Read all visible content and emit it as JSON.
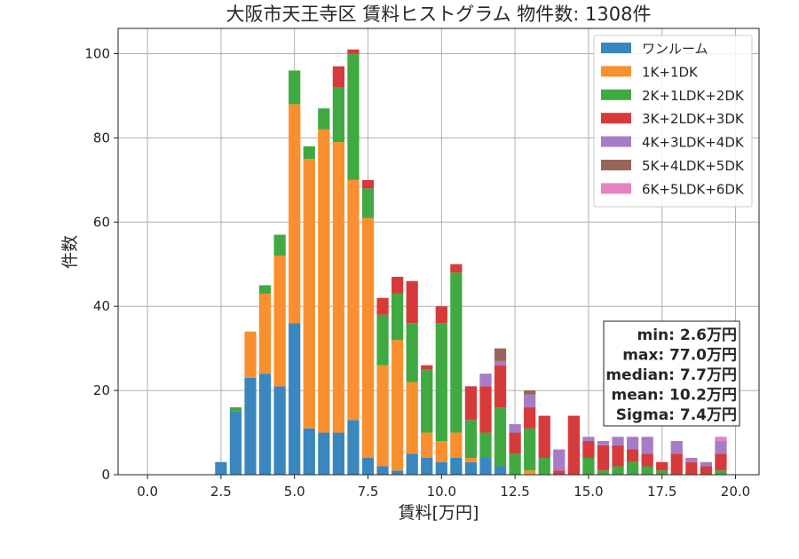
{
  "chart_data": {
    "type": "bar",
    "stacked": true,
    "title": "大阪市天王寺区 賃料ヒストグラム 物件数: 1308件",
    "xlabel": "賃料[万円]",
    "ylabel": "件数",
    "xlim": [
      -1.0,
      20.8
    ],
    "ylim": [
      0,
      106
    ],
    "xticks": [
      0.0,
      2.5,
      5.0,
      7.5,
      10.0,
      12.5,
      15.0,
      17.5,
      20.0
    ],
    "xtick_labels": [
      "0.0",
      "2.5",
      "5.0",
      "7.5",
      "10.0",
      "12.5",
      "15.0",
      "17.5",
      "20.0"
    ],
    "yticks": [
      0,
      20,
      40,
      60,
      80,
      100
    ],
    "ytick_labels": [
      "0",
      "20",
      "40",
      "60",
      "80",
      "100"
    ],
    "grid": true,
    "legend_position": "top-right",
    "bin_width": 0.5,
    "x": [
      2.5,
      3.0,
      3.5,
      4.0,
      4.5,
      5.0,
      5.5,
      6.0,
      6.5,
      7.0,
      7.5,
      8.0,
      8.5,
      9.0,
      9.5,
      10.0,
      10.5,
      11.0,
      11.5,
      12.0,
      12.5,
      13.0,
      13.5,
      14.0,
      14.5,
      15.0,
      15.5,
      16.0,
      16.5,
      17.0,
      17.5,
      18.0,
      18.5,
      19.0,
      19.5
    ],
    "series": [
      {
        "name": "ワンルーム",
        "color": "#3a87bf",
        "values": [
          3,
          15,
          23,
          24,
          21,
          36,
          11,
          10,
          10,
          13,
          4,
          2,
          1,
          5,
          4,
          3,
          4,
          3,
          4,
          2,
          0,
          0,
          0,
          0,
          0,
          0,
          0,
          0,
          0,
          0,
          0,
          0,
          0,
          0,
          0
        ]
      },
      {
        "name": "1K+1DK",
        "color": "#f98f2e",
        "values": [
          0,
          0,
          11,
          19,
          31,
          52,
          64,
          72,
          69,
          57,
          57,
          24,
          31,
          17,
          6,
          5,
          6,
          1,
          0,
          0,
          0,
          1,
          0,
          0,
          0,
          0,
          0,
          0,
          0,
          0,
          0,
          0,
          0,
          0,
          0
        ]
      },
      {
        "name": "2K+1LDK+2DK",
        "color": "#41a941",
        "values": [
          0,
          1,
          0,
          2,
          5,
          8,
          3,
          5,
          13,
          30,
          7,
          12,
          11,
          14,
          15,
          28,
          38,
          9,
          6,
          14,
          5,
          10,
          4,
          0,
          0,
          4,
          1,
          2,
          3,
          2,
          1,
          0,
          0,
          0,
          1
        ]
      },
      {
        "name": "3K+2LDK+3DK",
        "color": "#d73a3b",
        "values": [
          0,
          0,
          0,
          0,
          0,
          0,
          0,
          0,
          5,
          1,
          2,
          4,
          4,
          10,
          1,
          4,
          2,
          8,
          11,
          10,
          5,
          5,
          10,
          1,
          14,
          4,
          6,
          5,
          3,
          3,
          2,
          5,
          3,
          2,
          4
        ]
      },
      {
        "name": "4K+3LDK+4DK",
        "color": "#a57dc6",
        "values": [
          0,
          0,
          0,
          0,
          0,
          0,
          0,
          0,
          0,
          0,
          0,
          0,
          0,
          0,
          0,
          0,
          0,
          0,
          3,
          1,
          2,
          3,
          0,
          5,
          0,
          1,
          1,
          2,
          3,
          4,
          0,
          3,
          1,
          1,
          3
        ]
      },
      {
        "name": "5K+4LDK+5DK",
        "color": "#98655a",
        "values": [
          0,
          0,
          0,
          0,
          0,
          0,
          0,
          0,
          0,
          0,
          0,
          0,
          0,
          0,
          0,
          0,
          0,
          0,
          0,
          3,
          0,
          1,
          0,
          0,
          0,
          0,
          0,
          0,
          0,
          0,
          0,
          0,
          0,
          0,
          0
        ]
      },
      {
        "name": "6K+5LDK+6DK",
        "color": "#e583c4",
        "values": [
          0,
          0,
          0,
          0,
          0,
          0,
          0,
          0,
          0,
          0,
          0,
          0,
          0,
          0,
          0,
          0,
          0,
          0,
          0,
          0,
          0,
          0,
          0,
          0,
          0,
          0,
          0,
          0,
          0,
          0,
          0,
          0,
          0,
          0,
          1
        ]
      }
    ],
    "stats_box": {
      "position": "right",
      "lines": [
        "min: 2.6万円",
        "max: 77.0万円",
        "median: 7.7万円",
        "mean: 10.2万円",
        "Sigma: 7.4万円"
      ]
    }
  }
}
